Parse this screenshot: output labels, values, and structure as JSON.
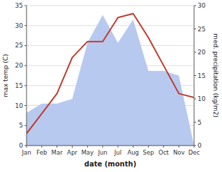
{
  "chart_data": {
    "type": "line",
    "xlabel": "date (month)",
    "ylabel": "max temp (C)",
    "y2label": "med. precipitation (kg/m2)",
    "categories": [
      "Jan",
      "Feb",
      "Mar",
      "Apr",
      "May",
      "Jun",
      "Jul",
      "Aug",
      "Sep",
      "Oct",
      "Nov",
      "Dec"
    ],
    "series": [
      {
        "type": "area",
        "axis": "y2",
        "color": "#b8c9f0",
        "values": [
          7,
          9,
          9,
          10,
          22,
          28,
          22,
          27,
          16,
          16,
          15,
          0
        ]
      },
      {
        "type": "line",
        "color": "#c0392b",
        "values": [
          3,
          8,
          13,
          22,
          26,
          26,
          32,
          33,
          27,
          20,
          13,
          12
        ]
      }
    ],
    "ylim": [
      0,
      35
    ],
    "yticks": [
      0,
      5,
      10,
      15,
      20,
      25,
      30,
      35
    ],
    "y2lim": [
      0,
      30
    ],
    "y2ticks": [
      0,
      5,
      10,
      15,
      20,
      25,
      30
    ],
    "grid": true
  }
}
